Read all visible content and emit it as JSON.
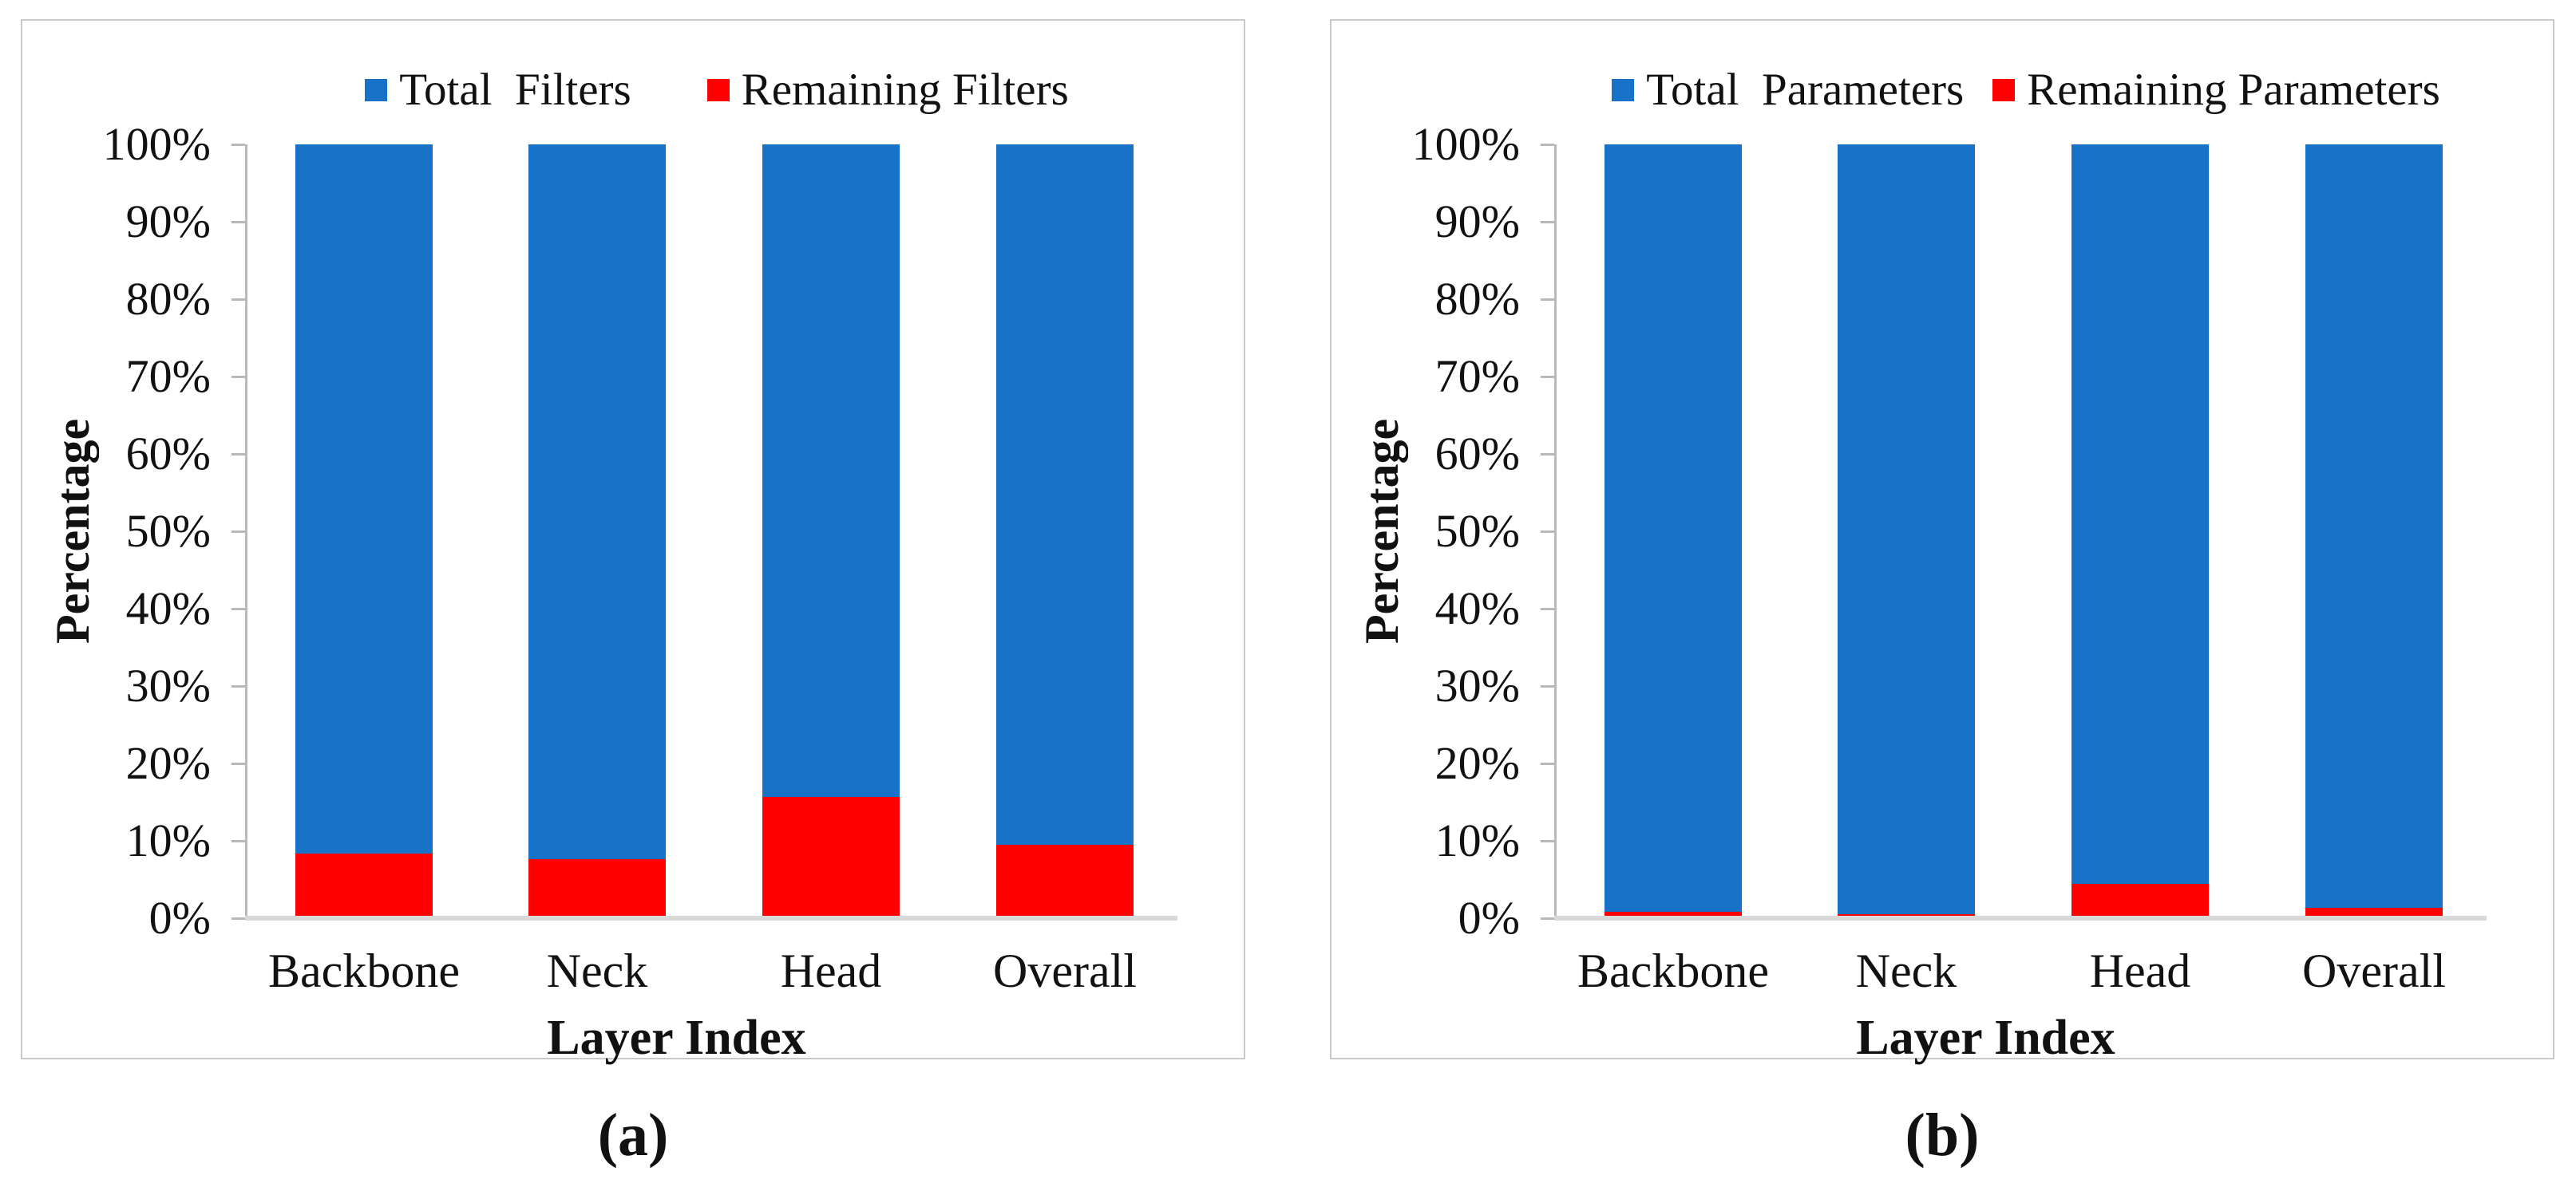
{
  "figure": {
    "caption_a": "(a)",
    "caption_b": "(b)"
  },
  "colors": {
    "total_series": "#1772C8",
    "remaining_series": "#FE0000",
    "axis_line": "#B9B9B9",
    "baseline": "#D9D9D9",
    "panel_border": "#C9C9C9",
    "text": "#111111"
  },
  "chart_data": [
    {
      "type": "bar",
      "stacked": true,
      "panel": "a",
      "categories": [
        "Backbone",
        "Neck",
        "Head",
        "Overall"
      ],
      "series": [
        {
          "name": "Total  Filters",
          "color": "#1772C8",
          "values": [
            91.6,
            92.4,
            84.3,
            90.5
          ]
        },
        {
          "name": "Remaining Filters",
          "color": "#FE0000",
          "values": [
            8.4,
            7.6,
            15.7,
            9.5
          ]
        }
      ],
      "bar_totals": [
        100,
        100,
        100,
        100
      ],
      "xlabel": "Layer Index",
      "ylabel": "Percentage",
      "ylim": [
        0,
        100
      ],
      "yticks": [
        "100%",
        "90%",
        "80%",
        "70%",
        "60%",
        "50%",
        "40%",
        "30%",
        "20%",
        "10%",
        "0%"
      ],
      "grid": false,
      "legend_position": "top"
    },
    {
      "type": "bar",
      "stacked": true,
      "panel": "b",
      "categories": [
        "Backbone",
        "Neck",
        "Head",
        "Overall"
      ],
      "series": [
        {
          "name": "Total  Parameters",
          "color": "#1772C8",
          "values": [
            99.2,
            99.5,
            95.6,
            98.7
          ]
        },
        {
          "name": "Remaining Parameters",
          "color": "#FE0000",
          "values": [
            0.8,
            0.5,
            4.4,
            1.3
          ]
        }
      ],
      "bar_totals": [
        100,
        100,
        100,
        100
      ],
      "xlabel": "Layer Index",
      "ylabel": "Percentage",
      "ylim": [
        0,
        100
      ],
      "yticks": [
        "100%",
        "90%",
        "80%",
        "70%",
        "60%",
        "50%",
        "40%",
        "30%",
        "20%",
        "10%",
        "0%"
      ],
      "grid": false,
      "legend_position": "top"
    }
  ]
}
